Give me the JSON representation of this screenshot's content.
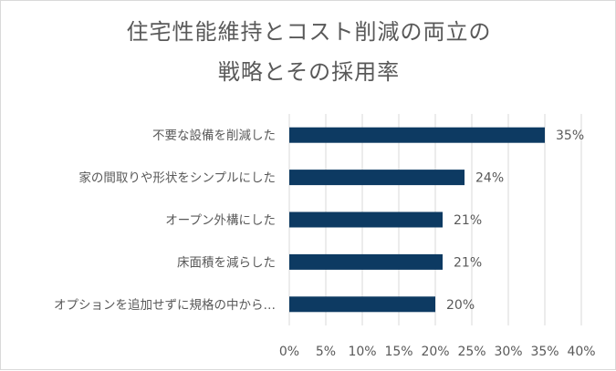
{
  "chart_data": {
    "type": "bar",
    "orientation": "horizontal",
    "title_lines": [
      "住宅性能維持とコスト削減の両立の",
      "戦略とその採用率"
    ],
    "categories": [
      "不要な設備を削減した",
      "家の間取りや形状をシンプルにした",
      "オープン外構にした",
      "床面積を減らした",
      "オプションを追加せずに規格の中から…"
    ],
    "values": [
      35,
      24,
      21,
      21,
      20
    ],
    "value_labels": [
      "35%",
      "24%",
      "21%",
      "21%",
      "20%"
    ],
    "xlim": [
      0,
      40
    ],
    "x_ticks": [
      "0%",
      "5%",
      "10%",
      "15%",
      "20%",
      "25%",
      "30%",
      "35%",
      "40%"
    ],
    "grid": "vertical",
    "legend": "none",
    "bar_color": "#0d3a62",
    "grid_color": "#d9d9d9",
    "text_color": "#595959"
  }
}
